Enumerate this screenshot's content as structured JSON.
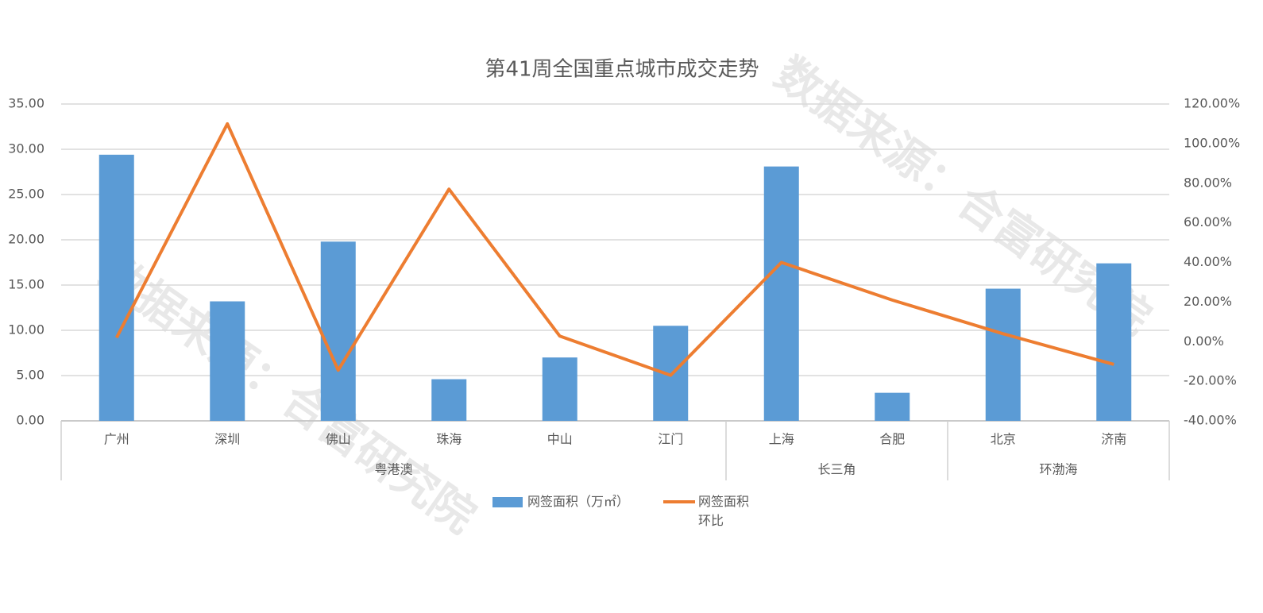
{
  "chart_data": {
    "type": "bar-line",
    "title": "第41周全国重点城市成交走势",
    "watermark": "数据来源：合富研究院",
    "groups": [
      {
        "name": "粤港澳",
        "categories": [
          "广州",
          "深圳",
          "佛山",
          "珠海",
          "中山",
          "江门"
        ]
      },
      {
        "name": "长三角",
        "categories": [
          "上海",
          "合肥"
        ]
      },
      {
        "name": "环渤海",
        "categories": [
          "北京",
          "济南"
        ]
      }
    ],
    "series": [
      {
        "name": "网签面积（万㎡）",
        "type": "bar",
        "color": "#5b9bd5",
        "axis": "y",
        "values": [
          29.4,
          13.2,
          19.8,
          4.6,
          7.0,
          10.5,
          28.1,
          3.1,
          14.6,
          17.4
        ]
      },
      {
        "name": "网签面积环比",
        "type": "line",
        "color": "#ed7d31",
        "axis": "y2",
        "values": [
          2,
          110,
          -14.4,
          77,
          2.8,
          -17,
          40,
          21,
          4,
          -11.5
        ]
      }
    ],
    "ylim": [
      0,
      35
    ],
    "yticks": [
      {
        "value": 0,
        "label": "0.00"
      },
      {
        "value": 5,
        "label": "5.00"
      },
      {
        "value": 10,
        "label": "10.00"
      },
      {
        "value": 15,
        "label": "15.00"
      },
      {
        "value": 20,
        "label": "20.00"
      },
      {
        "value": 25,
        "label": "25.00"
      },
      {
        "value": 30,
        "label": "30.00"
      },
      {
        "value": 35,
        "label": "35.00"
      }
    ],
    "y2lim": [
      -40,
      120
    ],
    "y2ticks": [
      {
        "value": -40,
        "label": "-40.00%"
      },
      {
        "value": -20,
        "label": "-20.00%"
      },
      {
        "value": 0,
        "label": "0.00%"
      },
      {
        "value": 20,
        "label": "20.00%"
      },
      {
        "value": 40,
        "label": "40.00%"
      },
      {
        "value": 60,
        "label": "60.00%"
      },
      {
        "value": 80,
        "label": "80.00%"
      },
      {
        "value": 100,
        "label": "100.00%"
      },
      {
        "value": 120,
        "label": "120.00%"
      }
    ],
    "grid": true,
    "legend": "bottom"
  }
}
